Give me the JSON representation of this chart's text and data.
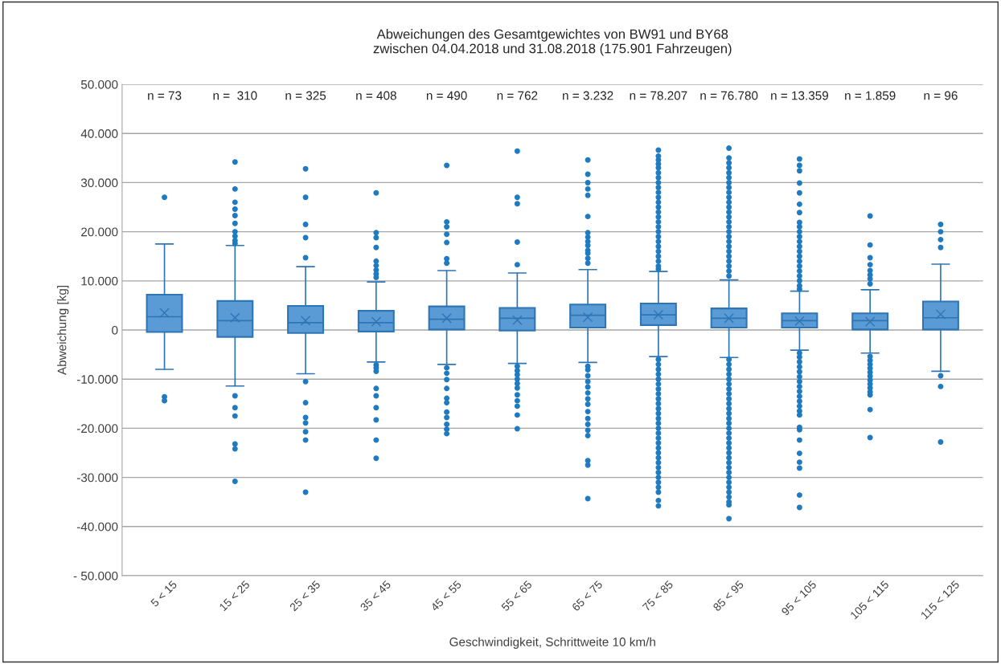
{
  "chart_data": {
    "type": "box",
    "title": "Abweichungen des Gesamtgewichtes von BW91 und BY68\nzwischen 04.04.2018 und 31.08.2018 (175.901 Fahrzeugen)",
    "xlabel": "Geschwindigkeit, Schrittweite 10 km/h",
    "ylabel": "Abweichung [kg]",
    "categories": [
      "5 < 15",
      "15 < 25",
      "25 < 35",
      "35 < 45",
      "45 < 55",
      "55 < 65",
      "65 < 75",
      "75 < 85",
      "85 < 95",
      "95 < 105",
      "105 < 115",
      "115 < 125"
    ],
    "color": "#5b9bd5",
    "boxes": [
      {
        "low": -8000,
        "q1": -400,
        "median": 2700,
        "q3": 7200,
        "high": 17500,
        "mean": 3500,
        "outliers": [
          27000,
          -13600,
          -14400
        ]
      },
      {
        "low": -11400,
        "q1": -1400,
        "median": 1900,
        "q3": 5900,
        "high": 17200,
        "mean": 2500,
        "outliers": [
          34200,
          28700,
          26000,
          24600,
          23300,
          21700,
          20000,
          19100,
          18200,
          17600,
          -13400,
          -15800,
          -17500,
          -23200,
          -24200,
          -30800
        ]
      },
      {
        "low": -8900,
        "q1": -600,
        "median": 1500,
        "q3": 4900,
        "high": 12900,
        "mean": 1900,
        "outliers": [
          32800,
          27000,
          21500,
          18800,
          14700,
          -10500,
          -14800,
          -17800,
          -18900,
          -20700,
          -22400,
          -33000
        ]
      },
      {
        "low": -6500,
        "q1": -300,
        "median": 1500,
        "q3": 3900,
        "high": 9800,
        "mean": 1700,
        "outliers": [
          27900,
          19800,
          18800,
          16800,
          14000,
          13100,
          12200,
          11400,
          10700,
          -7100,
          -7700,
          -8400,
          -11900,
          -13400,
          -15800,
          -18300,
          -22400,
          -26100
        ]
      },
      {
        "low": -7000,
        "q1": 100,
        "median": 2200,
        "q3": 4800,
        "high": 12100,
        "mean": 2400,
        "outliers": [
          33500,
          22000,
          21000,
          19500,
          17800,
          14500,
          13600,
          -7700,
          -8800,
          -10100,
          -11900,
          -13900,
          -14800,
          -16700,
          -17800,
          -19200,
          -20200,
          -21100
        ]
      },
      {
        "low": -6800,
        "q1": -100,
        "median": 2400,
        "q3": 4500,
        "high": 11600,
        "mean": 2000,
        "outliers": [
          36400,
          27000,
          25700,
          17900,
          13300,
          -7400,
          -8300,
          -9100,
          -10000,
          -10900,
          -11800,
          -13200,
          -14400,
          -15500,
          -17300,
          -20100
        ]
      },
      {
        "low": -6600,
        "q1": 500,
        "median": 3000,
        "q3": 5200,
        "high": 12300,
        "mean": 2600,
        "outliers": [
          34600,
          31700,
          30000,
          28700,
          27400,
          23100,
          19800,
          18900,
          18000,
          17200,
          16200,
          15600,
          14600,
          13600,
          -7400,
          -8100,
          -9300,
          -10500,
          -11600,
          -12800,
          -14000,
          -15100,
          -16600,
          -18000,
          -19200,
          -20400,
          -21500,
          -26600,
          -27500,
          -34300
        ]
      },
      {
        "low": -5400,
        "q1": 1000,
        "median": 3100,
        "q3": 5400,
        "high": 11900,
        "mean": 3100,
        "outliers": [
          36600,
          35400,
          34600,
          33800,
          33000,
          32000,
          31000,
          30000,
          29000,
          28000,
          27000,
          26000,
          25000,
          24000,
          23000,
          22000,
          21000,
          20000,
          19000,
          18000,
          17000,
          16000,
          15000,
          14000,
          13000,
          12400,
          -6000,
          -7000,
          -8000,
          -9000,
          -10000,
          -11000,
          -12000,
          -13000,
          -14000,
          -15000,
          -16000,
          -17000,
          -18000,
          -19000,
          -20000,
          -21000,
          -22000,
          -23000,
          -24000,
          -25000,
          -26000,
          -27000,
          -28000,
          -29000,
          -30000,
          -31000,
          -32000,
          -33000,
          -34700,
          -35800
        ]
      },
      {
        "low": -5600,
        "q1": 500,
        "median": 2400,
        "q3": 4400,
        "high": 10200,
        "mean": 2400,
        "outliers": [
          37000,
          35000,
          34000,
          33000,
          32000,
          31000,
          30000,
          29000,
          28000,
          27000,
          26000,
          25000,
          24000,
          23000,
          22000,
          21000,
          20000,
          19000,
          18000,
          17000,
          16000,
          15000,
          14000,
          13000,
          12000,
          11000,
          -6000,
          -7000,
          -8000,
          -9000,
          -10000,
          -11000,
          -12000,
          -13000,
          -14000,
          -15000,
          -16000,
          -17000,
          -18000,
          -19000,
          -20000,
          -21000,
          -22000,
          -23000,
          -24000,
          -25000,
          -26000,
          -27000,
          -28000,
          -29000,
          -30000,
          -31000,
          -32000,
          -33000,
          -34000,
          -35000,
          -35600,
          -38400
        ]
      },
      {
        "low": -4100,
        "q1": 500,
        "median": 1900,
        "q3": 3400,
        "high": 7900,
        "mean": 1800,
        "outliers": [
          34800,
          33500,
          32400,
          29900,
          27900,
          25600,
          23900,
          21900,
          21000,
          20000,
          19000,
          18000,
          17000,
          16000,
          15000,
          14000,
          13000,
          12000,
          11000,
          10000,
          9000,
          8300,
          -4700,
          -5500,
          -6500,
          -7500,
          -8500,
          -9500,
          -10500,
          -11500,
          -12500,
          -13500,
          -14500,
          -15500,
          -16500,
          -17300,
          -19800,
          -20300,
          -22400,
          -25100,
          -26900,
          -28100,
          -33600,
          -36100
        ]
      },
      {
        "low": -4700,
        "q1": 100,
        "median": 1900,
        "q3": 3400,
        "high": 8200,
        "mean": 1700,
        "outliers": [
          23200,
          17300,
          14700,
          13300,
          12100,
          11200,
          10400,
          9400,
          -5400,
          -6200,
          -7000,
          -7800,
          -8600,
          -9400,
          -10200,
          -11000,
          -11800,
          -12600,
          -13200,
          -16200,
          -21900
        ]
      },
      {
        "low": -8400,
        "q1": 100,
        "median": 2500,
        "q3": 5800,
        "high": 13400,
        "mean": 3200,
        "outliers": [
          21500,
          20000,
          18400,
          16800,
          -9300,
          -11500,
          -22800
        ]
      }
    ],
    "ylim": [
      -50000,
      50000
    ],
    "yticks": [
      {
        "value": -50000,
        "label": "- 50.000"
      },
      {
        "value": -40000,
        "label": "-40.000"
      },
      {
        "value": -30000,
        "label": "-30.000"
      },
      {
        "value": -20000,
        "label": "-20.000"
      },
      {
        "value": -10000,
        "label": "-10.000"
      },
      0,
      {
        "value": 10000,
        "label": "10.000"
      },
      {
        "value": 20000,
        "label": "20.000"
      },
      {
        "value": 30000,
        "label": "30.000"
      },
      {
        "value": 40000,
        "label": "40.000"
      },
      {
        "value": 50000,
        "label": "50.000"
      }
    ],
    "grid": "y",
    "annotations": [
      "n = 73",
      "n =  310",
      "n = 325",
      "n = 408",
      "n = 490",
      "n = 762",
      "n = 3.232",
      "n = 78.207",
      "n = 76.780",
      "n = 13.359",
      "n = 1.859",
      "n = 96"
    ]
  }
}
